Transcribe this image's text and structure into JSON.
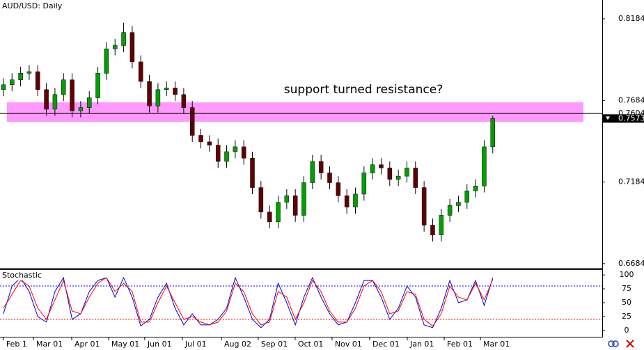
{
  "chart_data": [
    {
      "type": "candlestick",
      "title": "AUD/USD: Daily",
      "annotation": "support turned resistance?",
      "xlim": [
        -0.4,
        69.75
      ],
      "xticks": [
        {
          "value": 0,
          "label": "Feb 1"
        },
        {
          "value": 3.49,
          "label": "Mar 01"
        },
        {
          "value": 7.95,
          "label": "Apr 01"
        },
        {
          "value": 12.25,
          "label": "May 01"
        },
        {
          "value": 16.46,
          "label": "Jun 01"
        },
        {
          "value": 20.84,
          "label": "Jul 01"
        },
        {
          "value": 25.39,
          "label": "Aug 02"
        },
        {
          "value": 29.68,
          "label": "Sep 01"
        },
        {
          "value": 33.98,
          "label": "Oct 01"
        },
        {
          "value": 38.28,
          "label": "Nov 01"
        },
        {
          "value": 42.66,
          "label": "Dec 01"
        },
        {
          "value": 47.04,
          "label": "Jan 01"
        },
        {
          "value": 51.34,
          "label": "Feb 01"
        },
        {
          "value": 55.56,
          "label": "Mar 01"
        }
      ],
      "ylim": [
        0.6658,
        0.8299
      ],
      "yticks": [
        0.8184,
        0.7684,
        0.7184,
        0.6684
      ],
      "level": 0.7604,
      "last_price": 0.7573,
      "zone": [
        0.7553,
        0.7672
      ],
      "zone_color": "#ff99ff",
      "up_color": "#00a000",
      "down_color": "#600000",
      "open": [
        0.775,
        0.778,
        0.781,
        0.785,
        0.786,
        0.775,
        0.763,
        0.772,
        0.781,
        0.762,
        0.764,
        0.77,
        0.785,
        0.8,
        0.802,
        0.81,
        0.792,
        0.78,
        0.765,
        0.775,
        0.776,
        0.772,
        0.764,
        0.747,
        0.743,
        0.741,
        0.731,
        0.737,
        0.74,
        0.733,
        0.715,
        0.7,
        0.694,
        0.706,
        0.71,
        0.698,
        0.718,
        0.731,
        0.724,
        0.718,
        0.71,
        0.703,
        0.711,
        0.724,
        0.729,
        0.727,
        0.72,
        0.722,
        0.727,
        0.715,
        0.692,
        0.686,
        0.698,
        0.704,
        0.706,
        0.713,
        0.716,
        0.74
      ],
      "high": [
        0.782,
        0.785,
        0.789,
        0.79,
        0.79,
        0.779,
        0.776,
        0.785,
        0.785,
        0.768,
        0.774,
        0.789,
        0.804,
        0.806,
        0.816,
        0.814,
        0.796,
        0.784,
        0.779,
        0.78,
        0.78,
        0.776,
        0.768,
        0.751,
        0.747,
        0.745,
        0.741,
        0.744,
        0.744,
        0.737,
        0.719,
        0.704,
        0.71,
        0.714,
        0.714,
        0.722,
        0.735,
        0.735,
        0.728,
        0.722,
        0.714,
        0.715,
        0.728,
        0.733,
        0.733,
        0.731,
        0.726,
        0.731,
        0.731,
        0.719,
        0.696,
        0.702,
        0.708,
        0.71,
        0.717,
        0.72,
        0.744,
        0.759
      ],
      "low": [
        0.771,
        0.774,
        0.777,
        0.781,
        0.771,
        0.759,
        0.759,
        0.768,
        0.758,
        0.758,
        0.76,
        0.766,
        0.781,
        0.796,
        0.798,
        0.788,
        0.776,
        0.761,
        0.761,
        0.771,
        0.768,
        0.76,
        0.743,
        0.739,
        0.737,
        0.727,
        0.727,
        0.733,
        0.729,
        0.711,
        0.696,
        0.69,
        0.69,
        0.702,
        0.694,
        0.694,
        0.714,
        0.72,
        0.714,
        0.706,
        0.699,
        0.699,
        0.707,
        0.72,
        0.723,
        0.716,
        0.716,
        0.718,
        0.711,
        0.688,
        0.682,
        0.682,
        0.694,
        0.7,
        0.702,
        0.709,
        0.712,
        0.736
      ],
      "close": [
        0.778,
        0.781,
        0.785,
        0.786,
        0.775,
        0.763,
        0.772,
        0.781,
        0.762,
        0.764,
        0.77,
        0.785,
        0.8,
        0.802,
        0.81,
        0.792,
        0.78,
        0.765,
        0.775,
        0.776,
        0.772,
        0.764,
        0.747,
        0.743,
        0.741,
        0.731,
        0.737,
        0.74,
        0.733,
        0.715,
        0.7,
        0.694,
        0.706,
        0.71,
        0.698,
        0.718,
        0.731,
        0.724,
        0.718,
        0.71,
        0.703,
        0.711,
        0.724,
        0.729,
        0.727,
        0.72,
        0.722,
        0.727,
        0.715,
        0.692,
        0.686,
        0.698,
        0.704,
        0.706,
        0.713,
        0.716,
        0.74,
        0.7573
      ]
    },
    {
      "type": "line",
      "title": "Stochastic",
      "xlim": [
        -0.4,
        69.75
      ],
      "ylim": [
        -11.4,
        108.9
      ],
      "yticks": [
        100,
        75,
        50,
        25,
        0
      ],
      "levels": [
        {
          "value": 80,
          "color": "#0000ff"
        },
        {
          "value": 20,
          "color": "#ff0000"
        }
      ],
      "series": [
        {
          "color": "#0000cc",
          "values": [
            30,
            80,
            95,
            70,
            25,
            15,
            70,
            95,
            20,
            30,
            70,
            90,
            95,
            60,
            95,
            60,
            8,
            20,
            60,
            85,
            40,
            10,
            30,
            10,
            10,
            20,
            40,
            95,
            60,
            20,
            5,
            20,
            85,
            50,
            10,
            60,
            95,
            60,
            30,
            10,
            15,
            50,
            90,
            90,
            60,
            20,
            40,
            80,
            60,
            10,
            5,
            40,
            90,
            50,
            55,
            90,
            45,
            95
          ]
        },
        {
          "color": "#ff0000",
          "values": [
            40,
            65,
            90,
            80,
            40,
            20,
            55,
            90,
            35,
            30,
            60,
            85,
            95,
            70,
            85,
            70,
            15,
            15,
            50,
            80,
            50,
            20,
            25,
            15,
            10,
            15,
            35,
            85,
            70,
            30,
            10,
            15,
            70,
            60,
            20,
            50,
            90,
            70,
            35,
            15,
            15,
            40,
            80,
            90,
            70,
            30,
            35,
            70,
            65,
            20,
            8,
            30,
            80,
            60,
            55,
            85,
            55,
            92
          ]
        }
      ]
    }
  ]
}
